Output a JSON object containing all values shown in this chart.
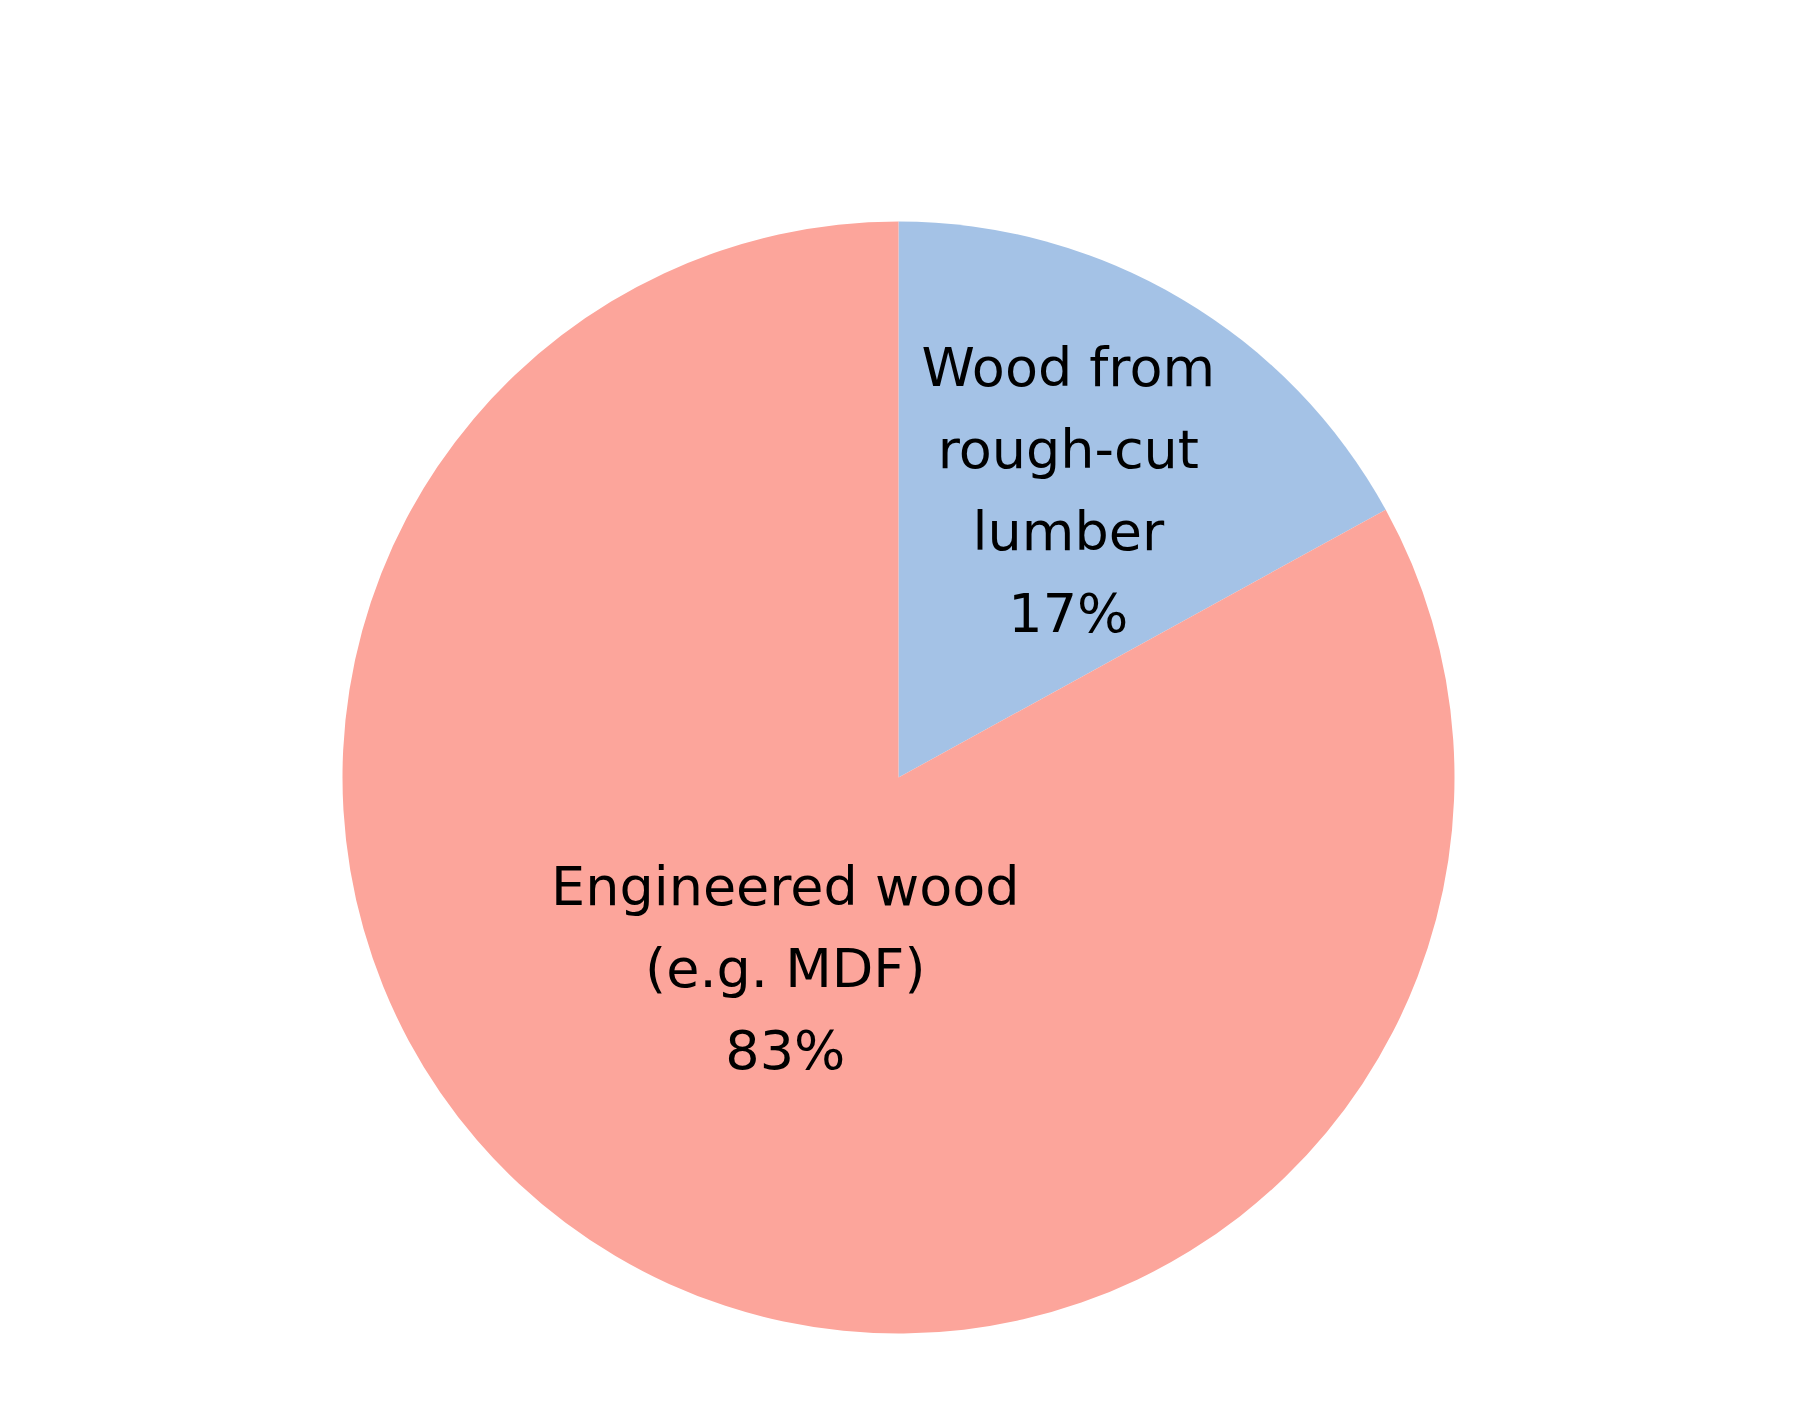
{
  "chart_data": {
    "type": "pie",
    "categories": [
      "Wood from rough-cut lumber",
      "Engineered wood (e.g. MDF)"
    ],
    "values": [
      17,
      83
    ],
    "colors": [
      "#a4c2e6",
      "#fca59b"
    ],
    "value_labels": [
      "17%",
      "83%"
    ]
  }
}
